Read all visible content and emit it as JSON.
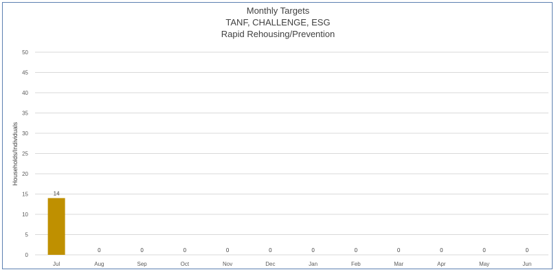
{
  "chart_data": {
    "type": "bar",
    "title": [
      "Monthly Targets",
      "TANF, CHALLENGE, ESG",
      "Rapid Rehousing/Prevention"
    ],
    "xlabel": "",
    "ylabel": "Households/Individuals",
    "categories": [
      "Jul",
      "Aug",
      "Sep",
      "Oct",
      "Nov",
      "Dec",
      "Jan",
      "Feb",
      "Mar",
      "Apr",
      "May",
      "Jun"
    ],
    "values": [
      14,
      0,
      0,
      0,
      0,
      0,
      0,
      0,
      0,
      0,
      0,
      0
    ],
    "data_labels": [
      "14",
      "0",
      "0",
      "0",
      "0",
      "0",
      "0",
      "0",
      "0",
      "0",
      "0",
      "0"
    ],
    "ylim": [
      0,
      50
    ],
    "yticks": [
      0,
      5,
      10,
      15,
      20,
      25,
      30,
      35,
      40,
      45,
      50
    ],
    "grid": true,
    "bar_color": "#bf9000",
    "grid_color": "#d9d9d9"
  }
}
